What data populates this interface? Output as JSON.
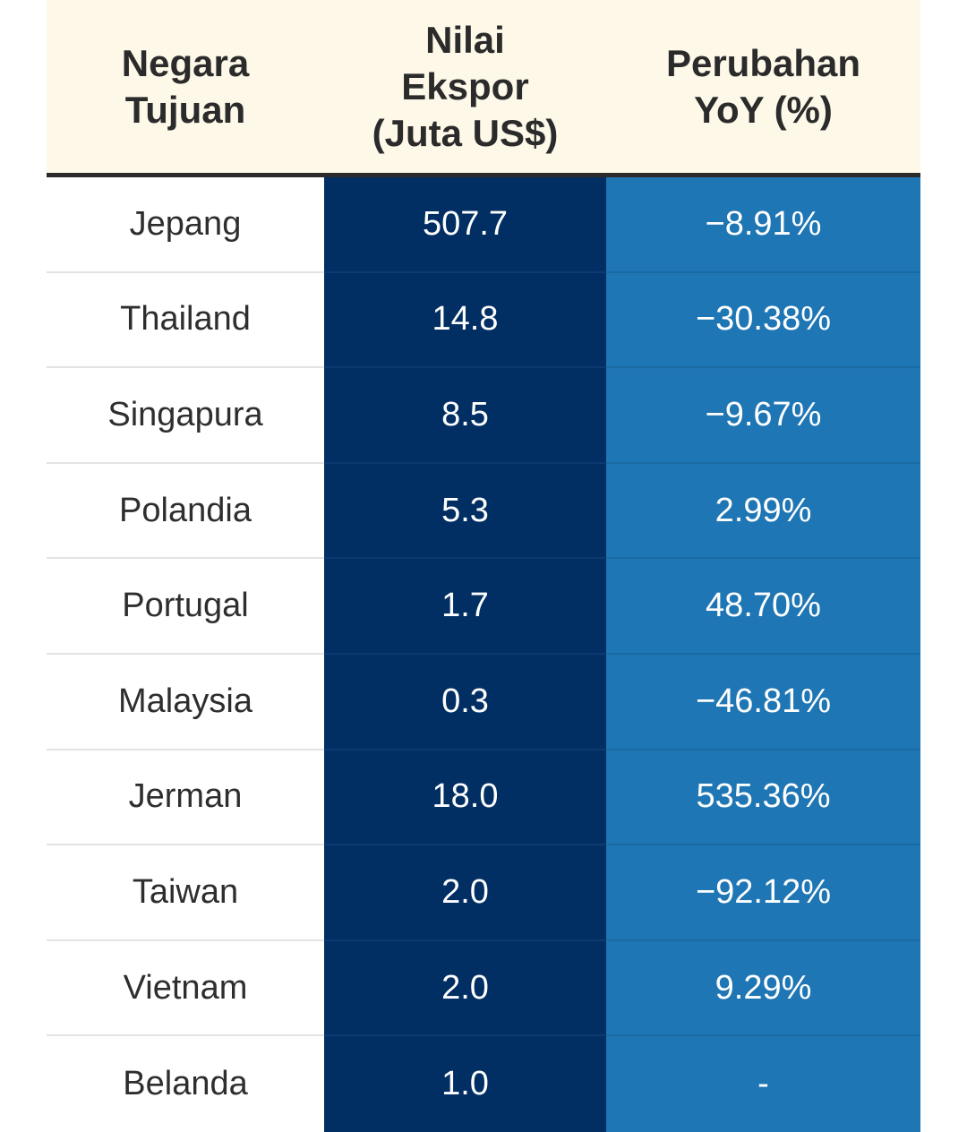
{
  "colors": {
    "header_bg": "#fdf8e8",
    "value_column": "#022f63",
    "change_column": "#1f76b4",
    "text_dark": "#2e2e2e"
  },
  "table": {
    "headers": [
      "Negara\nTujuan",
      "Nilai\nEkspor\n(Juta US$)",
      "Perubahan\nYoY (%)"
    ],
    "rows": [
      {
        "country": "Jepang",
        "value": "507.7",
        "change": "−8.91%"
      },
      {
        "country": "Thailand",
        "value": "14.8",
        "change": "−30.38%"
      },
      {
        "country": "Singapura",
        "value": "8.5",
        "change": "−9.67%"
      },
      {
        "country": "Polandia",
        "value": "5.3",
        "change": "2.99%"
      },
      {
        "country": "Portugal",
        "value": "1.7",
        "change": "48.70%"
      },
      {
        "country": "Malaysia",
        "value": "0.3",
        "change": "−46.81%"
      },
      {
        "country": "Jerman",
        "value": "18.0",
        "change": "535.36%"
      },
      {
        "country": "Taiwan",
        "value": "2.0",
        "change": "−92.12%"
      },
      {
        "country": "Vietnam",
        "value": "2.0",
        "change": "9.29%"
      },
      {
        "country": "Belanda",
        "value": "1.0",
        "change": "-"
      }
    ]
  }
}
